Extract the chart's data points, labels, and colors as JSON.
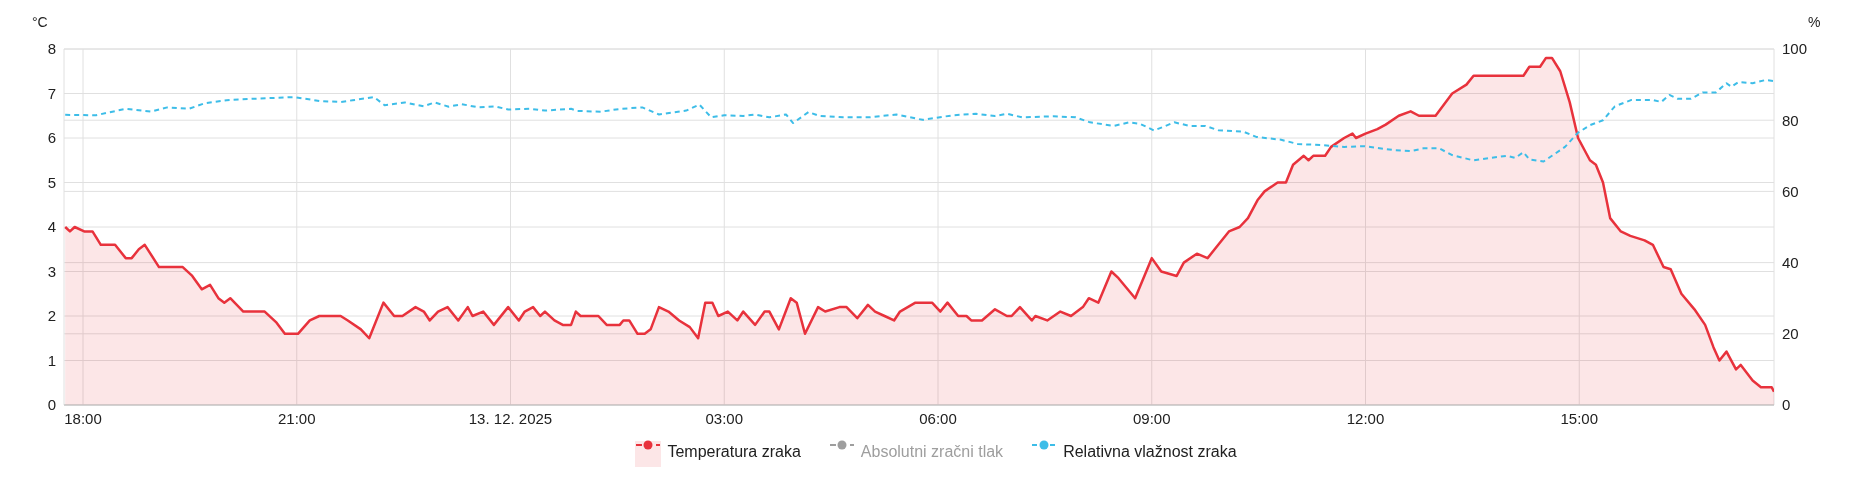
{
  "chart_data": {
    "type": "area",
    "ylabel": "°C",
    "y2label": "%",
    "xlim": [
      "2025-12-12T17:44",
      "2025-12-13T17:44"
    ],
    "xticks": [
      {
        "value": "2025-12-12T18:00",
        "label": "18:00"
      },
      {
        "value": "2025-12-12T21:00",
        "label": "21:00"
      },
      {
        "value": "2025-12-13T00:00",
        "label": "13. 12. 2025"
      },
      {
        "value": "2025-12-13T03:00",
        "label": "03:00"
      },
      {
        "value": "2025-12-13T06:00",
        "label": "06:00"
      },
      {
        "value": "2025-12-13T09:00",
        "label": "09:00"
      },
      {
        "value": "2025-12-13T12:00",
        "label": "12:00"
      },
      {
        "value": "2025-12-13T15:00",
        "label": "15:00"
      }
    ],
    "ylim": [
      0,
      8
    ],
    "yticks": [
      0,
      1,
      2,
      3,
      4,
      5,
      6,
      7,
      8
    ],
    "y2lim": [
      0,
      100
    ],
    "y2ticks": [
      0,
      20,
      40,
      60,
      80,
      100
    ],
    "grid": true,
    "legend": "bottom",
    "marker": "none",
    "series": [
      {
        "name": "Temperatura zraka",
        "color": "#e8323c",
        "line_style": "solid",
        "x": [
          "2025-12-12T17:45",
          "2025-12-12T17:49",
          "2025-12-12T17:53",
          "2025-12-12T18:01",
          "2025-12-12T18:08",
          "2025-12-12T18:15",
          "2025-12-12T18:27",
          "2025-12-12T18:36",
          "2025-12-12T18:41",
          "2025-12-12T18:47",
          "2025-12-12T18:52",
          "2025-12-12T19:04",
          "2025-12-12T19:24",
          "2025-12-12T19:32",
          "2025-12-12T19:40",
          "2025-12-12T19:47",
          "2025-12-12T19:54",
          "2025-12-12T19:59",
          "2025-12-12T20:04",
          "2025-12-12T20:15",
          "2025-12-12T20:33",
          "2025-12-12T20:43",
          "2025-12-12T20:50",
          "2025-12-12T21:01",
          "2025-12-12T21:11",
          "2025-12-12T21:19",
          "2025-12-12T21:37",
          "2025-12-12T21:43",
          "2025-12-12T21:54",
          "2025-12-12T22:01",
          "2025-12-12T22:13",
          "2025-12-12T22:22",
          "2025-12-12T22:29",
          "2025-12-12T22:40",
          "2025-12-12T22:47",
          "2025-12-12T22:52",
          "2025-12-12T22:59",
          "2025-12-12T23:07",
          "2025-12-12T23:16",
          "2025-12-12T23:24",
          "2025-12-12T23:28",
          "2025-12-12T23:37",
          "2025-12-12T23:46",
          "2025-12-12T23:58",
          "2025-12-13T00:07",
          "2025-12-13T00:12",
          "2025-12-13T00:19",
          "2025-12-13T00:25",
          "2025-12-13T00:29",
          "2025-12-13T00:37",
          "2025-12-13T00:44",
          "2025-12-13T00:51",
          "2025-12-13T00:55",
          "2025-12-13T00:59",
          "2025-12-13T01:14",
          "2025-12-13T01:21",
          "2025-12-13T01:32",
          "2025-12-13T01:35",
          "2025-12-13T01:40",
          "2025-12-13T01:47",
          "2025-12-13T01:53",
          "2025-12-13T01:58",
          "2025-12-13T02:05",
          "2025-12-13T02:13",
          "2025-12-13T02:22",
          "2025-12-13T02:31",
          "2025-12-13T02:38",
          "2025-12-13T02:44",
          "2025-12-13T02:50",
          "2025-12-13T02:55",
          "2025-12-13T03:03",
          "2025-12-13T03:11",
          "2025-12-13T03:16",
          "2025-12-13T03:26",
          "2025-12-13T03:34",
          "2025-12-13T03:38",
          "2025-12-13T03:46",
          "2025-12-13T03:56",
          "2025-12-13T04:01",
          "2025-12-13T04:08",
          "2025-12-13T04:19",
          "2025-12-13T04:25",
          "2025-12-13T04:37",
          "2025-12-13T04:43",
          "2025-12-13T04:52",
          "2025-12-13T05:01",
          "2025-12-13T05:07",
          "2025-12-13T05:15",
          "2025-12-13T05:23",
          "2025-12-13T05:28",
          "2025-12-13T05:41",
          "2025-12-13T05:55",
          "2025-12-13T06:02",
          "2025-12-13T06:08",
          "2025-12-13T06:17",
          "2025-12-13T06:24",
          "2025-12-13T06:28",
          "2025-12-13T06:37",
          "2025-12-13T06:48",
          "2025-12-13T06:58",
          "2025-12-13T07:02",
          "2025-12-13T07:09",
          "2025-12-13T07:19",
          "2025-12-13T07:22",
          "2025-12-13T07:32",
          "2025-12-13T07:43",
          "2025-12-13T07:52",
          "2025-12-13T08:02",
          "2025-12-13T08:07",
          "2025-12-13T08:15",
          "2025-12-13T08:26",
          "2025-12-13T08:32",
          "2025-12-13T08:46",
          "2025-12-13T09:00",
          "2025-12-13T09:08",
          "2025-12-13T09:21",
          "2025-12-13T09:27",
          "2025-12-13T09:38",
          "2025-12-13T09:47",
          "2025-12-13T09:56",
          "2025-12-13T10:05",
          "2025-12-13T10:14",
          "2025-12-13T10:21",
          "2025-12-13T10:29",
          "2025-12-13T10:35",
          "2025-12-13T10:46",
          "2025-12-13T10:53",
          "2025-12-13T10:59",
          "2025-12-13T11:08",
          "2025-12-13T11:12",
          "2025-12-13T11:16",
          "2025-12-13T11:26",
          "2025-12-13T11:31",
          "2025-12-13T11:42",
          "2025-12-13T11:49",
          "2025-12-13T11:52",
          "2025-12-13T12:00",
          "2025-12-13T12:10",
          "2025-12-13T12:17",
          "2025-12-13T12:28",
          "2025-12-13T12:38",
          "2025-12-13T12:45",
          "2025-12-13T12:59",
          "2025-12-13T13:13",
          "2025-12-13T13:25",
          "2025-12-13T13:31",
          "2025-12-13T14:13",
          "2025-12-13T14:18",
          "2025-12-13T14:27",
          "2025-12-13T14:32",
          "2025-12-13T14:37",
          "2025-12-13T14:44",
          "2025-12-13T14:52",
          "2025-12-13T14:59",
          "2025-12-13T15:09",
          "2025-12-13T15:14",
          "2025-12-13T15:20",
          "2025-12-13T15:26",
          "2025-12-13T15:35",
          "2025-12-13T15:43",
          "2025-12-13T15:55",
          "2025-12-13T16:02",
          "2025-12-13T16:11",
          "2025-12-13T16:17",
          "2025-12-13T16:26",
          "2025-12-13T16:37",
          "2025-12-13T16:46",
          "2025-12-13T16:53",
          "2025-12-13T16:58",
          "2025-12-13T17:04",
          "2025-12-13T17:12",
          "2025-12-13T17:16",
          "2025-12-13T17:26",
          "2025-12-13T17:33",
          "2025-12-13T17:42",
          "2025-12-13T17:44"
        ],
        "values": [
          4.0,
          3.9,
          4.0,
          3.9,
          3.9,
          3.6,
          3.6,
          3.3,
          3.3,
          3.5,
          3.6,
          3.1,
          3.1,
          2.9,
          2.6,
          2.7,
          2.4,
          2.3,
          2.4,
          2.1,
          2.1,
          1.85,
          1.6,
          1.6,
          1.9,
          2.0,
          2.0,
          1.9,
          1.7,
          1.5,
          2.3,
          2.0,
          2.0,
          2.2,
          2.1,
          1.9,
          2.1,
          2.2,
          1.9,
          2.2,
          2.0,
          2.1,
          1.8,
          2.2,
          1.9,
          2.1,
          2.2,
          2.0,
          2.1,
          1.9,
          1.8,
          1.8,
          2.1,
          2.0,
          2.0,
          1.8,
          1.8,
          1.9,
          1.9,
          1.6,
          1.6,
          1.7,
          2.2,
          2.1,
          1.9,
          1.75,
          1.5,
          2.3,
          2.3,
          2.0,
          2.1,
          1.9,
          2.1,
          1.8,
          2.1,
          2.1,
          1.7,
          2.4,
          2.3,
          1.6,
          2.2,
          2.1,
          2.2,
          2.2,
          1.95,
          2.25,
          2.1,
          2.0,
          1.9,
          2.1,
          2.3,
          2.3,
          2.1,
          2.3,
          2.0,
          2.0,
          1.9,
          1.9,
          2.15,
          2.0,
          2.0,
          2.2,
          1.9,
          2.0,
          1.9,
          2.1,
          2.0,
          2.2,
          2.4,
          2.3,
          3.0,
          2.85,
          2.4,
          3.3,
          3.0,
          2.9,
          3.2,
          3.4,
          3.3,
          3.6,
          3.9,
          4.0,
          4.2,
          4.6,
          4.8,
          5.0,
          5.0,
          5.4,
          5.6,
          5.5,
          5.6,
          5.6,
          5.8,
          6.0,
          6.1,
          6.0,
          6.1,
          6.2,
          6.3,
          6.5,
          6.6,
          6.5,
          6.5,
          7.0,
          7.2,
          7.4,
          7.4,
          7.6,
          7.6,
          7.8,
          7.8,
          7.5,
          6.8,
          6.0,
          5.5,
          5.4,
          5.0,
          4.2,
          3.9,
          3.8,
          3.7,
          3.6,
          3.1,
          3.05,
          2.5,
          2.15,
          1.8,
          1.3,
          1.0,
          1.2,
          0.8,
          0.9,
          0.55,
          0.4,
          0.4,
          0.3
        ]
      },
      {
        "name": "Absolutni zračni tlak",
        "type": "line",
        "color": "#9e9e9e"
      },
      {
        "name": "Relativna vlažnost zraka",
        "type": "line",
        "axis": "y2",
        "color": "#3dbde8",
        "line_style": "dashed",
        "x": [
          "2025-12-12T17:45",
          "2025-12-12T18:11",
          "2025-12-12T18:36",
          "2025-12-12T18:57",
          "2025-12-12T19:11",
          "2025-12-12T19:29",
          "2025-12-12T19:43",
          "2025-12-12T20:01",
          "2025-12-12T20:22",
          "2025-12-12T20:58",
          "2025-12-12T21:19",
          "2025-12-12T21:37",
          "2025-12-12T21:47",
          "2025-12-12T22:05",
          "2025-12-12T22:14",
          "2025-12-12T22:31",
          "2025-12-12T22:47",
          "2025-12-12T22:56",
          "2025-12-12T23:08",
          "2025-12-12T23:19",
          "2025-12-12T23:33",
          "2025-12-12T23:47",
          "2025-12-12T23:58",
          "2025-12-13T00:16",
          "2025-12-13T00:29",
          "2025-12-13T00:51",
          "2025-12-13T00:56",
          "2025-12-13T01:16",
          "2025-12-13T01:33",
          "2025-12-13T01:51",
          "2025-12-13T02:05",
          "2025-12-13T02:28",
          "2025-12-13T02:39",
          "2025-12-13T02:49",
          "2025-12-13T03:00",
          "2025-12-13T03:16",
          "2025-12-13T03:26",
          "2025-12-13T03:38",
          "2025-12-13T03:52",
          "2025-12-13T03:58",
          "2025-12-13T04:11",
          "2025-12-13T04:20",
          "2025-12-13T04:40",
          "2025-12-13T05:02",
          "2025-12-13T05:25",
          "2025-12-13T05:47",
          "2025-12-13T06:13",
          "2025-12-13T06:32",
          "2025-12-13T06:48",
          "2025-12-13T06:58",
          "2025-12-13T07:11",
          "2025-12-13T07:37",
          "2025-12-13T07:56",
          "2025-12-13T08:08",
          "2025-12-13T08:28",
          "2025-12-13T08:41",
          "2025-12-13T08:50",
          "2025-12-13T09:02",
          "2025-12-13T09:19",
          "2025-12-13T09:32",
          "2025-12-13T09:45",
          "2025-12-13T09:56",
          "2025-12-13T10:17",
          "2025-12-13T10:28",
          "2025-12-13T10:49",
          "2025-12-13T11:03",
          "2025-12-13T11:24",
          "2025-12-13T11:42",
          "2025-12-13T11:59",
          "2025-12-13T12:24",
          "2025-12-13T12:38",
          "2025-12-13T12:49",
          "2025-12-13T13:02",
          "2025-12-13T13:13",
          "2025-12-13T13:31",
          "2025-12-13T13:45",
          "2025-12-13T13:59",
          "2025-12-13T14:06",
          "2025-12-13T14:13",
          "2025-12-13T14:18",
          "2025-12-13T14:30",
          "2025-12-13T14:37",
          "2025-12-13T14:48",
          "2025-12-13T14:59",
          "2025-12-13T15:09",
          "2025-12-13T15:20",
          "2025-12-13T15:30",
          "2025-12-13T15:44",
          "2025-12-13T16:02",
          "2025-12-13T16:09",
          "2025-12-13T16:16",
          "2025-12-13T16:23",
          "2025-12-13T16:34",
          "2025-12-13T16:44",
          "2025-12-13T16:55",
          "2025-12-13T17:04",
          "2025-12-13T17:08",
          "2025-12-13T17:14",
          "2025-12-13T17:26",
          "2025-12-13T17:37",
          "2025-12-13T17:44"
        ],
        "values": [
          81.5,
          81.4,
          83.2,
          82.4,
          83.6,
          83.2,
          84.8,
          85.6,
          86,
          86.5,
          85.4,
          85.1,
          85.6,
          86.5,
          84.2,
          85,
          83.9,
          85,
          83.8,
          84.5,
          83.6,
          83.9,
          83,
          83.2,
          82.7,
          83.2,
          82.6,
          82.4,
          83.2,
          83.6,
          81.6,
          82.7,
          84.4,
          80.8,
          81.4,
          81.2,
          81.6,
          80.8,
          81.6,
          79.2,
          82.3,
          81.2,
          80.8,
          80.8,
          81.6,
          80.1,
          81.4,
          81.8,
          81.2,
          81.8,
          80.8,
          81.1,
          80.8,
          79.4,
          78.4,
          79.4,
          79,
          77.1,
          79.4,
          78.4,
          78.4,
          77.2,
          76.8,
          75.3,
          74.5,
          73.3,
          73,
          72.5,
          72.7,
          71.6,
          71.3,
          72.1,
          72.1,
          70.2,
          68.7,
          69.4,
          70,
          69.4,
          71,
          69,
          68.4,
          70,
          72.5,
          76.5,
          78.6,
          80,
          83.9,
          85.7,
          85.7,
          85.1,
          87.1,
          86,
          86,
          87.8,
          87.8,
          90.4,
          89.4,
          90.7,
          90.4,
          91.3,
          91
        ]
      }
    ]
  }
}
